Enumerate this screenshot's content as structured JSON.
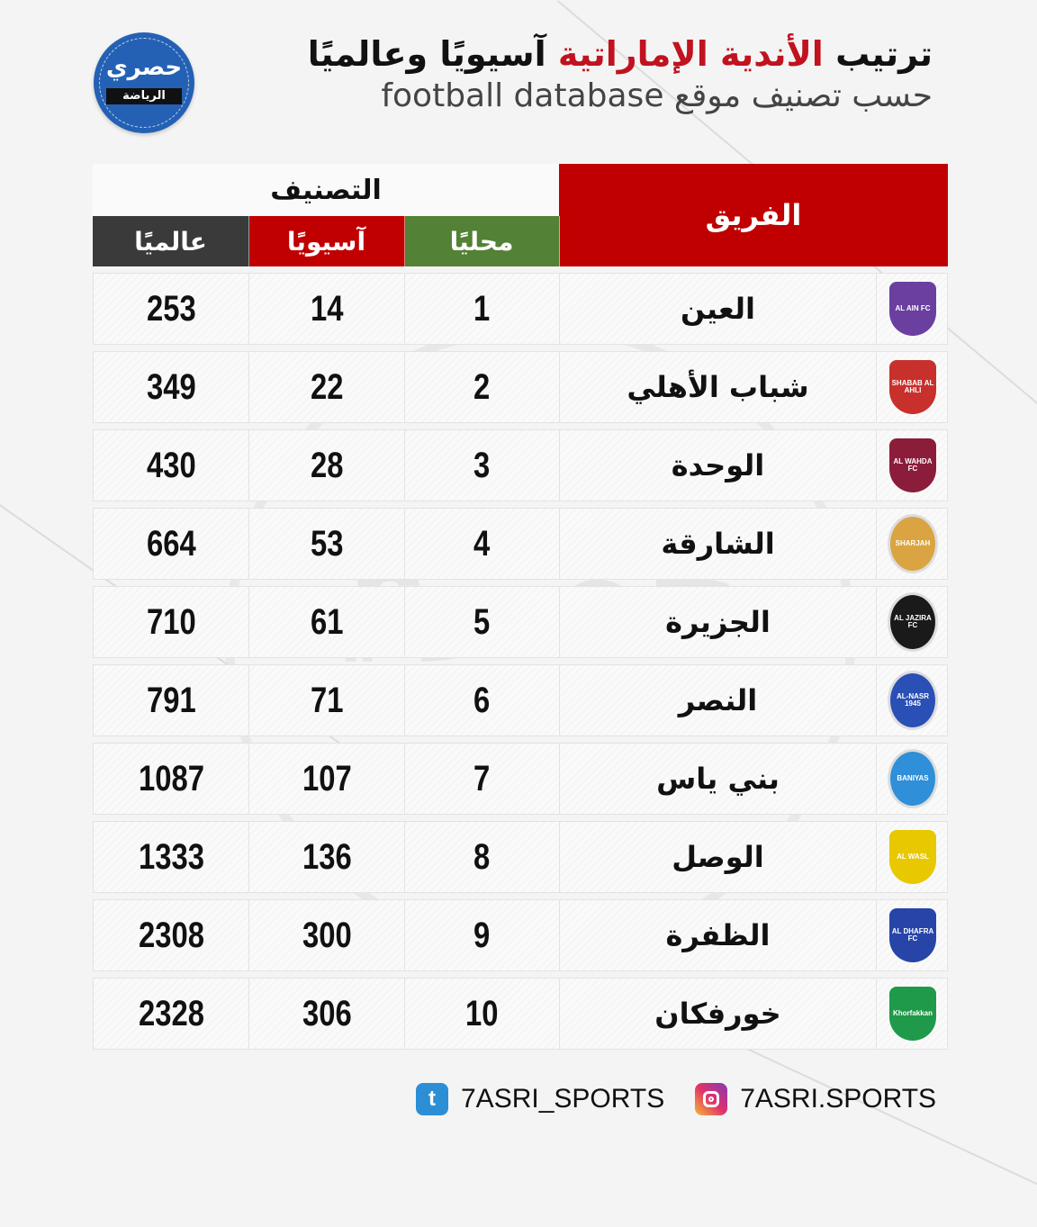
{
  "brand": {
    "logo_line1": "حصري",
    "logo_line2": "الرياضة",
    "accent_red": "#c00000",
    "accent_green": "#538135",
    "accent_dark": "#3a3a3a",
    "logo_blue": "#2461b5"
  },
  "header": {
    "title_part1": "ترتيب",
    "title_highlight": "الأندية الإماراتية",
    "title_part2": "آسيويًا وعالميًا",
    "subtitle": "حسب تصنيف موقع football database"
  },
  "table": {
    "team_header": "الفريق",
    "rank_header": "التصنيف",
    "local_header": "محليًا",
    "asia_header": "آسيويًا",
    "world_header": "عالميًا",
    "rows": [
      {
        "team": "العين",
        "local": "1",
        "asia": "14",
        "world": "253",
        "crest": "al-ain-crest-icon",
        "crest_label": "AL AIN FC",
        "crest_color": "#6a3fa0"
      },
      {
        "team": "شباب الأهلي",
        "local": "2",
        "asia": "22",
        "world": "349",
        "crest": "shabab-al-ahli-crest-icon",
        "crest_label": "SHABAB AL AHLI",
        "crest_color": "#c8302c"
      },
      {
        "team": "الوحدة",
        "local": "3",
        "asia": "28",
        "world": "430",
        "crest": "al-wahda-crest-icon",
        "crest_label": "AL WAHDA FC",
        "crest_color": "#8b1d3a"
      },
      {
        "team": "الشارقة",
        "local": "4",
        "asia": "53",
        "world": "664",
        "crest": "sharjah-crest-icon",
        "crest_label": "SHARJAH",
        "crest_color": "#d9a441"
      },
      {
        "team": "الجزيرة",
        "local": "5",
        "asia": "61",
        "world": "710",
        "crest": "al-jazira-crest-icon",
        "crest_label": "AL JAZIRA FC",
        "crest_color": "#1a1a1a"
      },
      {
        "team": "النصر",
        "local": "6",
        "asia": "71",
        "world": "791",
        "crest": "al-nasr-crest-icon",
        "crest_label": "AL-NASR 1945",
        "crest_color": "#2a4fb5"
      },
      {
        "team": "بني ياس",
        "local": "7",
        "asia": "107",
        "world": "1087",
        "crest": "baniyas-crest-icon",
        "crest_label": "BANIYAS",
        "crest_color": "#2f8fd8"
      },
      {
        "team": "الوصل",
        "local": "8",
        "asia": "136",
        "world": "1333",
        "crest": "al-wasl-crest-icon",
        "crest_label": "AL WASL",
        "crest_color": "#e8c800"
      },
      {
        "team": "الظفرة",
        "local": "9",
        "asia": "300",
        "world": "2308",
        "crest": "al-dhafra-crest-icon",
        "crest_label": "AL DHAFRA FC",
        "crest_color": "#2744a8"
      },
      {
        "team": "خورفكان",
        "local": "10",
        "asia": "306",
        "world": "2328",
        "crest": "khorfakkan-crest-icon",
        "crest_label": "Khorfakkan",
        "crest_color": "#1e9a4a"
      }
    ]
  },
  "footer": {
    "twitter_handle": "7ASRI_SPORTS",
    "instagram_handle": "7ASRI.SPORTS"
  }
}
